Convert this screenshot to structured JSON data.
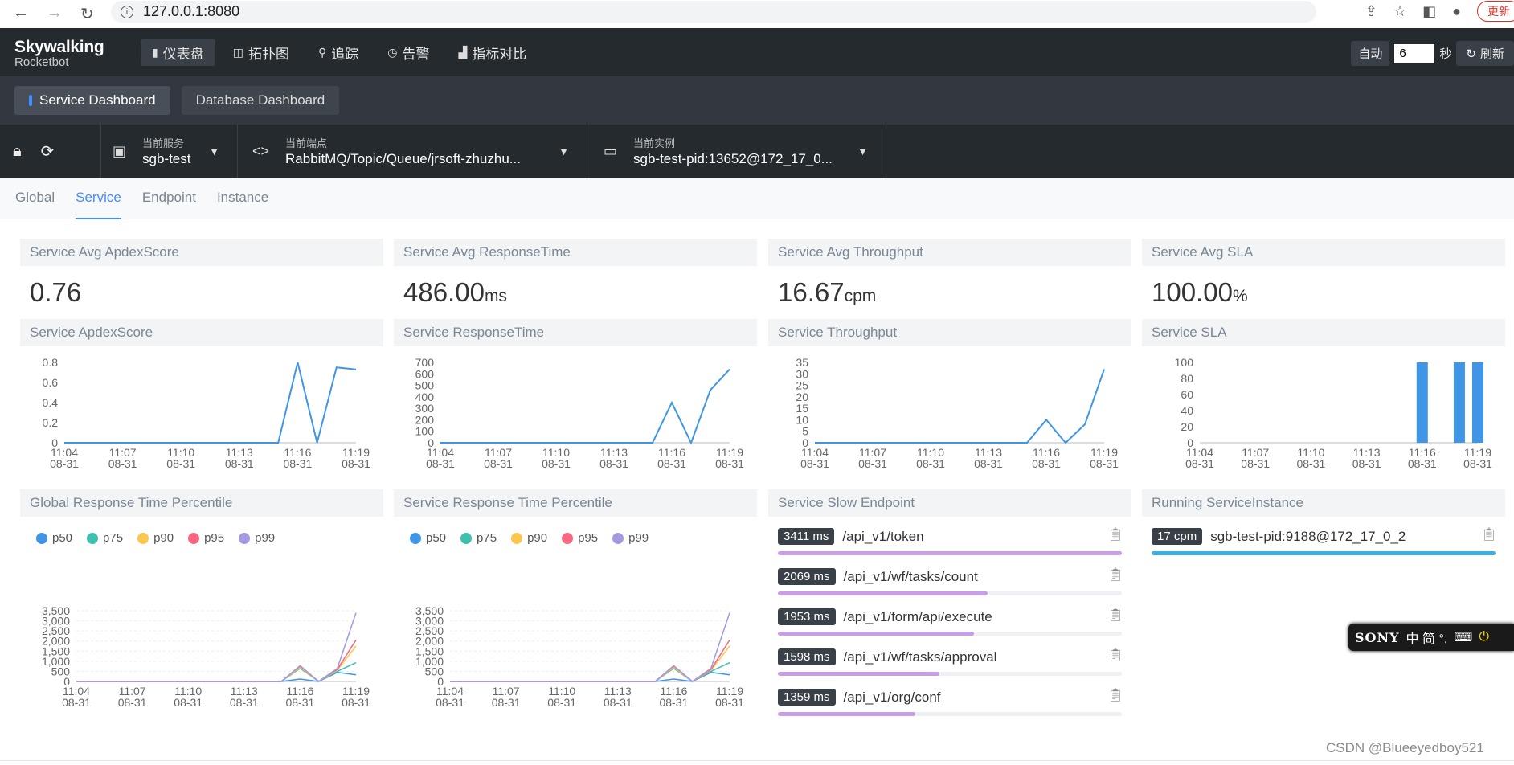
{
  "browser": {
    "url": "127.0.0.1:8080",
    "update_label": "更新",
    "back_icon": "back-icon",
    "forward_icon": "forward-icon",
    "reload_icon": "reload-icon"
  },
  "app": {
    "logo_line1": "Skywalking",
    "logo_line2": "Rocketbot"
  },
  "menu": [
    {
      "icon": "dashboard-icon",
      "glyph": "▮",
      "label": "仪表盘",
      "active": true
    },
    {
      "icon": "topology-icon",
      "glyph": "◫",
      "label": "拓扑图",
      "active": false
    },
    {
      "icon": "trace-icon",
      "glyph": "⚲",
      "label": "追踪",
      "active": false
    },
    {
      "icon": "alarm-icon",
      "glyph": "◷",
      "label": "告警",
      "active": false
    },
    {
      "icon": "metrics-compare-icon",
      "glyph": "▟",
      "label": "指标对比",
      "active": false
    }
  ],
  "auto_refresh": {
    "auto_label": "自动",
    "interval_value": "6",
    "seconds_label": "秒",
    "refresh_label": "刷新"
  },
  "dashboards": [
    {
      "label": "Service Dashboard",
      "active": true
    },
    {
      "label": "Database Dashboard",
      "active": false
    }
  ],
  "selectors": {
    "service": {
      "label": "当前服务",
      "value": "sgb-test"
    },
    "endpoint": {
      "label": "当前端点",
      "value": "RabbitMQ/Topic/Queue/jrsoft-zhuzhu..."
    },
    "instance": {
      "label": "当前实例",
      "value": "sgb-test-pid:13652@172_17_0..."
    }
  },
  "subtabs": [
    {
      "label": "Global",
      "active": false
    },
    {
      "label": "Service",
      "active": true
    },
    {
      "label": "Endpoint",
      "active": false
    },
    {
      "label": "Instance",
      "active": false
    }
  ],
  "stats": [
    {
      "title": "Service Avg ApdexScore",
      "value": "0.76",
      "unit": ""
    },
    {
      "title": "Service Avg ResponseTime",
      "value": "486.00",
      "unit": "ms"
    },
    {
      "title": "Service Avg Throughput",
      "value": "16.67",
      "unit": "cpm"
    },
    {
      "title": "Service Avg SLA",
      "value": "100.00",
      "unit": "%"
    }
  ],
  "colors": {
    "line": "#3f96e6",
    "p50": "#3f96e6",
    "p75": "#3fbfad",
    "p90": "#fcc64f",
    "p95": "#f6687f",
    "p99": "#a39ae2",
    "endpoint_bar": "#c89ee6",
    "instance_bar": "#3cb0e0"
  },
  "chart_data": [
    {
      "type": "line",
      "title": "Service ApdexScore",
      "x": [
        "11:04\n08-31",
        "11:05",
        "11:06",
        "11:07\n08-31",
        "11:08",
        "11:09",
        "11:10\n08-31",
        "11:11",
        "11:12",
        "11:13\n08-31",
        "11:14",
        "11:15",
        "11:16\n08-31",
        "11:17",
        "11:18",
        "11:19\n08-31"
      ],
      "x_ticks": [
        {
          "t": "11:04",
          "d": "08-31",
          "i": 0
        },
        {
          "t": "11:07",
          "d": "08-31",
          "i": 3
        },
        {
          "t": "11:10",
          "d": "08-31",
          "i": 6
        },
        {
          "t": "11:13",
          "d": "08-31",
          "i": 9
        },
        {
          "t": "11:16",
          "d": "08-31",
          "i": 12
        },
        {
          "t": "11:19",
          "d": "08-31",
          "i": 15
        }
      ],
      "series": [
        {
          "values": [
            0,
            0,
            0,
            0,
            0,
            0,
            0,
            0,
            0,
            0,
            0,
            0,
            0.8,
            0,
            0.75,
            0.73
          ]
        }
      ],
      "y_ticks": [
        "0",
        "0.2",
        "0.4",
        "0.6",
        "0.8"
      ],
      "ylim": [
        0,
        0.8
      ]
    },
    {
      "type": "line",
      "title": "Service ResponseTime",
      "x_ticks": [
        {
          "t": "11:04",
          "d": "08-31",
          "i": 0
        },
        {
          "t": "11:07",
          "d": "08-31",
          "i": 3
        },
        {
          "t": "11:10",
          "d": "08-31",
          "i": 6
        },
        {
          "t": "11:13",
          "d": "08-31",
          "i": 9
        },
        {
          "t": "11:16",
          "d": "08-31",
          "i": 12
        },
        {
          "t": "11:19",
          "d": "08-31",
          "i": 15
        }
      ],
      "series": [
        {
          "values": [
            0,
            0,
            0,
            0,
            0,
            0,
            0,
            0,
            0,
            0,
            0,
            0,
            350,
            0,
            460,
            640
          ]
        }
      ],
      "y_ticks": [
        "0",
        "100",
        "200",
        "300",
        "400",
        "500",
        "600",
        "700"
      ],
      "ylim": [
        0,
        700
      ]
    },
    {
      "type": "line",
      "title": "Service Throughput",
      "x_ticks": [
        {
          "t": "11:04",
          "d": "08-31",
          "i": 0
        },
        {
          "t": "11:07",
          "d": "08-31",
          "i": 3
        },
        {
          "t": "11:10",
          "d": "08-31",
          "i": 6
        },
        {
          "t": "11:13",
          "d": "08-31",
          "i": 9
        },
        {
          "t": "11:16",
          "d": "08-31",
          "i": 12
        },
        {
          "t": "11:19",
          "d": "08-31",
          "i": 15
        }
      ],
      "series": [
        {
          "values": [
            0,
            0,
            0,
            0,
            0,
            0,
            0,
            0,
            0,
            0,
            0,
            0,
            10,
            0,
            8,
            32
          ]
        }
      ],
      "y_ticks": [
        "0",
        "5",
        "10",
        "15",
        "20",
        "25",
        "30",
        "35"
      ],
      "ylim": [
        0,
        35
      ]
    },
    {
      "type": "bar",
      "title": "Service SLA",
      "x_ticks": [
        {
          "t": "11:04",
          "d": "08-31",
          "i": 0
        },
        {
          "t": "11:07",
          "d": "08-31",
          "i": 3
        },
        {
          "t": "11:10",
          "d": "08-31",
          "i": 6
        },
        {
          "t": "11:13",
          "d": "08-31",
          "i": 9
        },
        {
          "t": "11:16",
          "d": "08-31",
          "i": 12
        },
        {
          "t": "11:19",
          "d": "08-31",
          "i": 15
        }
      ],
      "series": [
        {
          "values": [
            0,
            0,
            0,
            0,
            0,
            0,
            0,
            0,
            0,
            0,
            0,
            0,
            100,
            0,
            100,
            100
          ]
        }
      ],
      "y_ticks": [
        "0",
        "20",
        "40",
        "60",
        "80",
        "100"
      ],
      "ylim": [
        0,
        100
      ]
    },
    {
      "type": "line",
      "title": "Global Response Time Percentile",
      "legend": [
        "p50",
        "p75",
        "p90",
        "p95",
        "p99"
      ],
      "x_ticks": [
        {
          "t": "11:04",
          "d": "08-31",
          "i": 0
        },
        {
          "t": "11:07",
          "d": "08-31",
          "i": 3
        },
        {
          "t": "11:10",
          "d": "08-31",
          "i": 6
        },
        {
          "t": "11:13",
          "d": "08-31",
          "i": 9
        },
        {
          "t": "11:16",
          "d": "08-31",
          "i": 12
        },
        {
          "t": "11:19",
          "d": "08-31",
          "i": 15
        }
      ],
      "series": [
        {
          "name": "p50",
          "values": [
            0,
            0,
            0,
            0,
            0,
            0,
            0,
            0,
            0,
            0,
            0,
            0,
            120,
            0,
            450,
            330
          ]
        },
        {
          "name": "p75",
          "values": [
            0,
            0,
            0,
            0,
            0,
            0,
            0,
            0,
            0,
            0,
            0,
            0,
            650,
            0,
            500,
            930
          ]
        },
        {
          "name": "p90",
          "values": [
            0,
            0,
            0,
            0,
            0,
            0,
            0,
            0,
            0,
            0,
            0,
            0,
            700,
            0,
            560,
            1750
          ]
        },
        {
          "name": "p95",
          "values": [
            0,
            0,
            0,
            0,
            0,
            0,
            0,
            0,
            0,
            0,
            0,
            0,
            760,
            0,
            600,
            2050
          ]
        },
        {
          "name": "p99",
          "values": [
            0,
            0,
            0,
            0,
            0,
            0,
            0,
            0,
            0,
            0,
            0,
            0,
            780,
            0,
            650,
            3400
          ]
        }
      ],
      "y_ticks": [
        "0",
        "500",
        "1,000",
        "1,500",
        "2,000",
        "2,500",
        "3,000",
        "3,500"
      ],
      "ylim": [
        0,
        3500
      ]
    },
    {
      "type": "line",
      "title": "Service Response Time Percentile",
      "legend": [
        "p50",
        "p75",
        "p90",
        "p95",
        "p99"
      ],
      "x_ticks": [
        {
          "t": "11:04",
          "d": "08-31",
          "i": 0
        },
        {
          "t": "11:07",
          "d": "08-31",
          "i": 3
        },
        {
          "t": "11:10",
          "d": "08-31",
          "i": 6
        },
        {
          "t": "11:13",
          "d": "08-31",
          "i": 9
        },
        {
          "t": "11:16",
          "d": "08-31",
          "i": 12
        },
        {
          "t": "11:19",
          "d": "08-31",
          "i": 15
        }
      ],
      "series": [
        {
          "name": "p50",
          "values": [
            0,
            0,
            0,
            0,
            0,
            0,
            0,
            0,
            0,
            0,
            0,
            0,
            120,
            0,
            450,
            330
          ]
        },
        {
          "name": "p75",
          "values": [
            0,
            0,
            0,
            0,
            0,
            0,
            0,
            0,
            0,
            0,
            0,
            0,
            650,
            0,
            500,
            930
          ]
        },
        {
          "name": "p90",
          "values": [
            0,
            0,
            0,
            0,
            0,
            0,
            0,
            0,
            0,
            0,
            0,
            0,
            700,
            0,
            560,
            1750
          ]
        },
        {
          "name": "p95",
          "values": [
            0,
            0,
            0,
            0,
            0,
            0,
            0,
            0,
            0,
            0,
            0,
            0,
            760,
            0,
            600,
            2050
          ]
        },
        {
          "name": "p99",
          "values": [
            0,
            0,
            0,
            0,
            0,
            0,
            0,
            0,
            0,
            0,
            0,
            0,
            780,
            0,
            650,
            3400
          ]
        }
      ],
      "y_ticks": [
        "0",
        "500",
        "1,000",
        "1,500",
        "2,000",
        "2,500",
        "3,000",
        "3,500"
      ],
      "ylim": [
        0,
        3500
      ]
    }
  ],
  "slow_endpoint": {
    "title": "Service Slow Endpoint",
    "items": [
      {
        "badge": "3411 ms",
        "name": "/api_v1/token",
        "ratio": 1.0
      },
      {
        "badge": "2069 ms",
        "name": "/api_v1/wf/tasks/count",
        "ratio": 0.61
      },
      {
        "badge": "1953 ms",
        "name": "/api_v1/form/api/execute",
        "ratio": 0.57
      },
      {
        "badge": "1598 ms",
        "name": "/api_v1/wf/tasks/approval",
        "ratio": 0.47
      },
      {
        "badge": "1359 ms",
        "name": "/api_v1/org/conf",
        "ratio": 0.4
      }
    ]
  },
  "running_instance": {
    "title": "Running ServiceInstance",
    "items": [
      {
        "badge": "17 cpm",
        "name": "sgb-test-pid:9188@172_17_0_2",
        "ratio": 1.0
      }
    ]
  },
  "ime": {
    "brand": "SONY",
    "text": "中 简 °,"
  },
  "watermark": "CSDN @Blueeyedboy521"
}
